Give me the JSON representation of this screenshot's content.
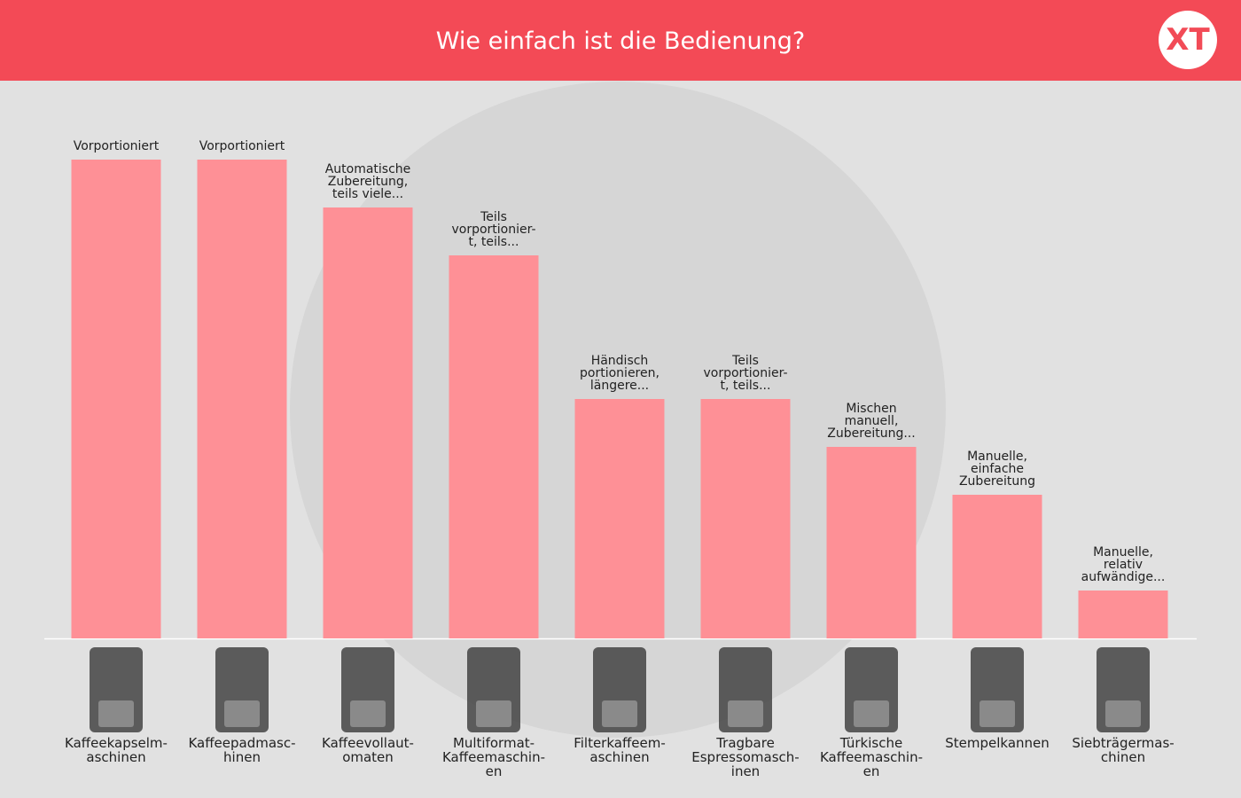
{
  "chart_data": {
    "type": "bar",
    "title": "Wie einfach ist die Bedienung?",
    "logo": "XT",
    "categories": [
      "Kaffeekapselm-\naschinen",
      "Kaffeepadmasc-\nhinen",
      "Kaffeevollaut-\nomaten",
      "Multiformat-\nKaffeemaschin-\nen",
      "Filterkaffeem-\naschinen",
      "Tragbare\nEspressomasch-\ninen",
      "Türkische\nKaffeemaschin-\nen",
      "Stempelkannen",
      "Siebträgermas-\nchinen"
    ],
    "values": [
      10,
      10,
      9,
      8,
      5,
      5,
      4,
      3,
      1
    ],
    "value_labels": [
      "Vorportioniert",
      "Vorportioniert",
      "Automatische\nZubereitung,\nteils viele...",
      "Teils\nvorportionier-\nt, teils...",
      "Händisch\nportionieren,\nlängere...",
      "Teils\nvorportionier-\nt, teils...",
      "Mischen\nmanuell,\nZubereitung...",
      "Manuelle,\neinfache\nZubereitung",
      "Manuelle,\nrelativ\naufwändige..."
    ],
    "color": "#fe9096",
    "ylim": [
      0,
      10
    ]
  }
}
